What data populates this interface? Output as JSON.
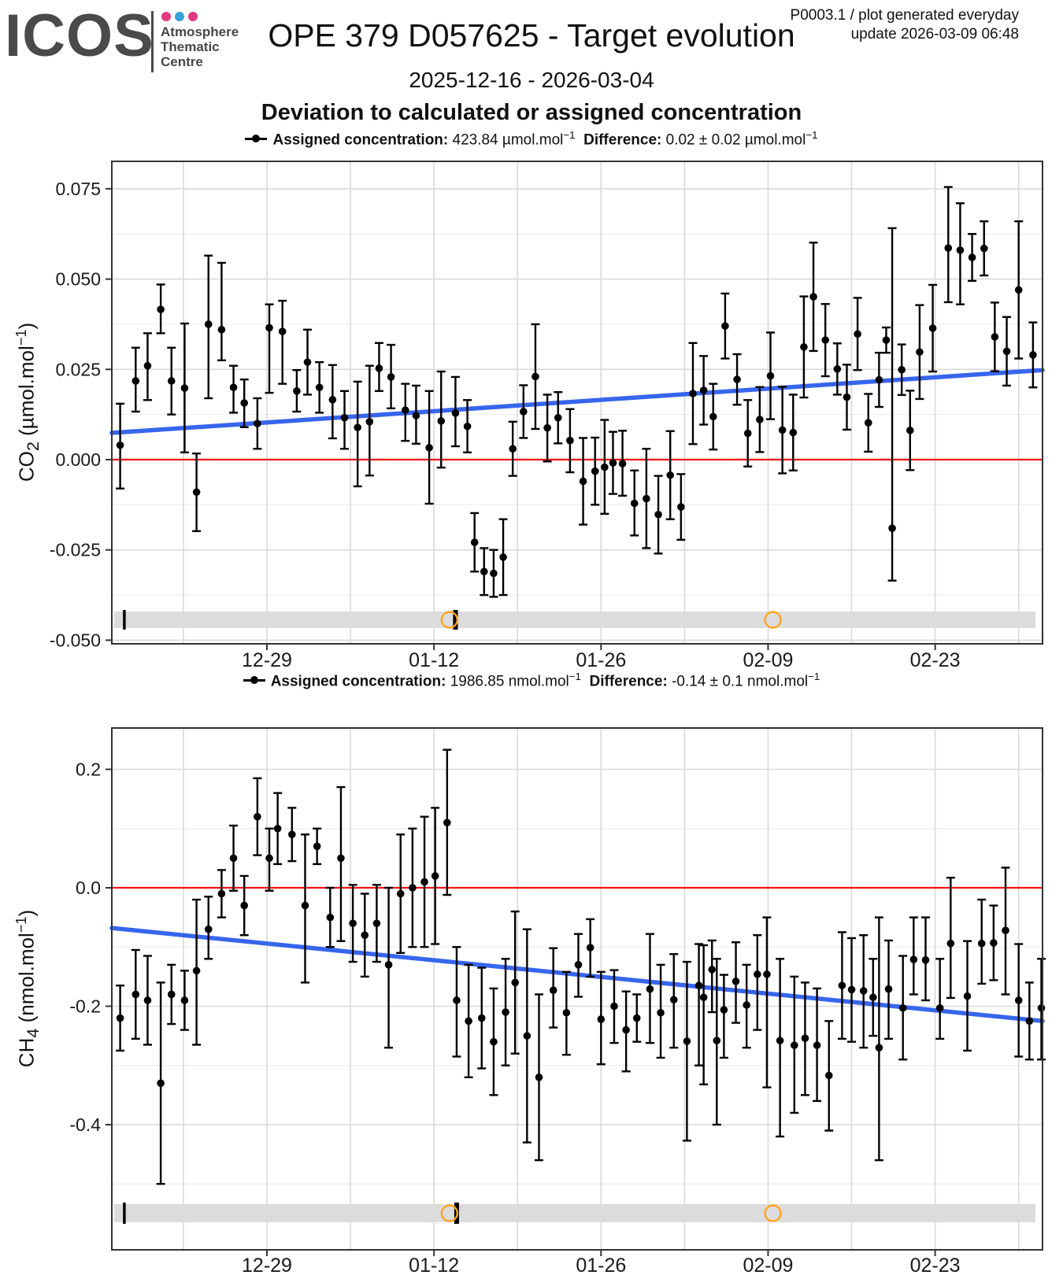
{
  "header": {
    "logo_text": "ICOS",
    "logo_dot_colors": [
      "#e23a7e",
      "#3aa0d8",
      "#e23a7e"
    ],
    "org_name": "Atmosphere\nThematic\nCentre",
    "title": "OPE 379 D057625 - Target evolution",
    "meta_line1": "P0003.1 / plot generated everyday",
    "meta_line2": "update  2026-03-09 06:48",
    "date_range": "2025-12-16 - 2026-03-04",
    "heading": "Deviation to calculated or assigned concentration"
  },
  "legends": [
    {
      "label1": "Assigned concentration:",
      "value1": "423.84 µmol.mol",
      "exp1": "−1",
      "label2": "Difference:",
      "value2": "0.02 ± 0.02 µmol.mol",
      "exp2": "−1"
    },
    {
      "label1": "Assigned concentration:",
      "value1": "1986.85 nmol.mol",
      "exp1": "−1",
      "label2": "Difference:",
      "value2": "-0.14 ± 0.1 nmol.mol",
      "exp2": "−1"
    }
  ],
  "colors": {
    "red_zero_line": "#f51313",
    "blue_trend_line": "#3765ec",
    "grid_major": "#d9d9d9",
    "grid_minor": "#eeeeee",
    "panel_border": "#333333",
    "timeline_band": "#dcdcdc",
    "orange_marker": "#ffa51e",
    "point": "#000000"
  },
  "chart_data": [
    {
      "type": "scatter",
      "series_name": "CO2 deviation to assigned concentration",
      "ylabel": {
        "gas": "CO",
        "sub": "2",
        "unit_open": "(µmol.mol",
        "exp": "−1",
        "unit_close": ")"
      },
      "x_start": "2025-12-16",
      "x_end": "2026-03-04",
      "x_days_range": [
        0,
        78
      ],
      "x_ticks": [
        {
          "day": 13,
          "label": "12-29"
        },
        {
          "day": 27,
          "label": "01-12"
        },
        {
          "day": 41,
          "label": "01-26"
        },
        {
          "day": 55,
          "label": "02-09"
        },
        {
          "day": 69,
          "label": "02-23"
        }
      ],
      "x_week_grid_days": [
        6,
        13,
        20,
        27,
        34,
        41,
        48,
        55,
        62,
        69,
        76
      ],
      "y_ticks": [
        {
          "v": 0.075,
          "label": "0.075"
        },
        {
          "v": 0.05,
          "label": "0.050"
        },
        {
          "v": 0.025,
          "label": "0.025"
        },
        {
          "v": 0,
          "label": "0.000"
        },
        {
          "v": -0.025,
          "label": "-0.025"
        },
        {
          "v": -0.05,
          "label": "-0.050"
        }
      ],
      "y_minor": [
        0.0625,
        0.0375,
        0.0125,
        -0.0125,
        -0.0375
      ],
      "ylim": [
        -0.051,
        0.0827
      ],
      "zero_line": 0,
      "trend": {
        "day0": 0,
        "v0": 0.0074,
        "day1": 78,
        "v1": 0.0248
      },
      "points": [
        [
          0.7,
          0.004,
          -0.008,
          0.0155
        ],
        [
          2,
          0.0218,
          0.0133,
          0.031
        ],
        [
          3,
          0.026,
          0.0165,
          0.035
        ],
        [
          4.1,
          0.0416,
          0.035,
          0.0485
        ],
        [
          5,
          0.0218,
          0.0125,
          0.031
        ],
        [
          6.1,
          0.0198,
          0.002,
          0.0377
        ],
        [
          7.1,
          -0.009,
          -0.0198,
          0.0017
        ],
        [
          8.1,
          0.0375,
          0.017,
          0.0565
        ],
        [
          9.2,
          0.036,
          0.0275,
          0.0545
        ],
        [
          10.2,
          0.02,
          0.013,
          0.026
        ],
        [
          11.1,
          0.0157,
          0.009,
          0.0222
        ],
        [
          12.2,
          0.01,
          0.003,
          0.017
        ],
        [
          13.2,
          0.0365,
          0.0185,
          0.043
        ],
        [
          14.3,
          0.0355,
          0.021,
          0.044
        ],
        [
          15.5,
          0.019,
          0.0133,
          0.0248
        ],
        [
          16.4,
          0.027,
          0.018,
          0.036
        ],
        [
          17.4,
          0.02,
          0.013,
          0.027
        ],
        [
          18.5,
          0.0166,
          0.0059,
          0.0262
        ],
        [
          19.5,
          0.0116,
          0.003,
          0.019
        ],
        [
          20.6,
          0.0089,
          -0.0074,
          0.0216
        ],
        [
          21.6,
          0.0105,
          -0.0044,
          0.026
        ],
        [
          22.4,
          0.0253,
          0.019,
          0.0323
        ],
        [
          23.4,
          0.0229,
          0.0142,
          0.0318
        ],
        [
          24.6,
          0.0137,
          0.0052,
          0.021
        ],
        [
          25.5,
          0.0122,
          0.0044,
          0.0205
        ],
        [
          26.6,
          0.0033,
          -0.0122,
          0.019
        ],
        [
          27.6,
          0.0107,
          -0.0022,
          0.0244
        ],
        [
          28.8,
          0.0129,
          0.0037,
          0.0229
        ],
        [
          29.8,
          0.0092,
          0.002,
          0.0165
        ],
        [
          30.4,
          -0.0229,
          -0.031,
          -0.0148
        ],
        [
          31.2,
          -0.031,
          -0.0375,
          -0.0245
        ],
        [
          32,
          -0.0315,
          -0.038,
          -0.025
        ],
        [
          32.8,
          -0.027,
          -0.0375,
          -0.0165
        ],
        [
          33.6,
          0.003,
          -0.0045,
          0.0105
        ],
        [
          34.5,
          0.0133,
          0.006,
          0.0206
        ],
        [
          35.5,
          0.023,
          0.0085,
          0.0375
        ],
        [
          36.5,
          0.0088,
          -0.0005,
          0.018
        ],
        [
          37.4,
          0.0116,
          0.0045,
          0.0187
        ],
        [
          38.4,
          0.0053,
          -0.0035,
          0.014
        ],
        [
          39.5,
          -0.006,
          -0.018,
          0.006
        ],
        [
          40.5,
          -0.0032,
          -0.0125,
          0.0061
        ],
        [
          41.3,
          -0.0021,
          -0.015,
          0.011
        ],
        [
          42,
          -0.0009,
          -0.0095,
          0.0077
        ],
        [
          42.8,
          -0.0011,
          -0.01,
          0.008
        ],
        [
          43.8,
          -0.0121,
          -0.021,
          -0.003
        ],
        [
          44.8,
          -0.0108,
          -0.0245,
          0.003
        ],
        [
          45.8,
          -0.0152,
          -0.026,
          -0.0045
        ],
        [
          46.8,
          -0.0043,
          -0.0165,
          0.0079
        ],
        [
          47.7,
          -0.0131,
          -0.0222,
          -0.004
        ],
        [
          48.7,
          0.0183,
          0.0043,
          0.0323
        ],
        [
          49.6,
          0.0192,
          0.0097,
          0.0287
        ],
        [
          50.4,
          0.0119,
          0.0028,
          0.021
        ],
        [
          51.4,
          0.037,
          0.028,
          0.046
        ],
        [
          52.4,
          0.0222,
          0.0152,
          0.0292
        ],
        [
          53.3,
          0.0073,
          -0.0019,
          0.0165
        ],
        [
          54.3,
          0.0111,
          0.0021,
          0.0201
        ],
        [
          55.2,
          0.0232,
          0.0112,
          0.0352
        ],
        [
          56.2,
          0.0082,
          -0.0038,
          0.0202
        ],
        [
          57.1,
          0.0075,
          -0.003,
          0.018
        ],
        [
          58,
          0.0312,
          0.0172,
          0.0452
        ],
        [
          58.8,
          0.0451,
          0.0301,
          0.0601
        ],
        [
          59.8,
          0.0331,
          0.0231,
          0.0431
        ],
        [
          60.8,
          0.0251,
          0.018,
          0.0322
        ],
        [
          61.6,
          0.0173,
          0.0083,
          0.0263
        ],
        [
          62.5,
          0.0348,
          0.0248,
          0.0448
        ],
        [
          63.4,
          0.0102,
          0.0022,
          0.0182
        ],
        [
          64.3,
          0.0221,
          0.0146,
          0.0296
        ],
        [
          64.9,
          0.0331,
          0.0296,
          0.0366
        ],
        [
          65.4,
          -0.019,
          -0.0335,
          0.0641
        ],
        [
          66.2,
          0.0249,
          0.0179,
          0.0319
        ],
        [
          66.9,
          0.0081,
          -0.0029,
          0.0191
        ],
        [
          67.7,
          0.0298,
          0.0168,
          0.0428
        ],
        [
          68.8,
          0.0364,
          0.0244,
          0.0484
        ],
        [
          70.1,
          0.0586,
          0.0436,
          0.0755
        ],
        [
          71.1,
          0.058,
          0.043,
          0.071
        ],
        [
          72.1,
          0.056,
          0.0495,
          0.0625
        ],
        [
          73.1,
          0.0585,
          0.051,
          0.066
        ],
        [
          74,
          0.034,
          0.0245,
          0.0435
        ],
        [
          75,
          0.03,
          0.0205,
          0.0395
        ],
        [
          76,
          0.047,
          0.028,
          0.066
        ],
        [
          77.2,
          0.029,
          0.02,
          0.038
        ]
      ],
      "timeline": {
        "ticks": [
          {
            "day": 1.05,
            "weight": "thin"
          },
          {
            "day": 28.8,
            "weight": "thick"
          }
        ],
        "circles": [
          {
            "day": 28.3
          },
          {
            "day": 55.4
          }
        ]
      }
    },
    {
      "type": "scatter",
      "series_name": "CH4 deviation to assigned concentration",
      "ylabel": {
        "gas": "CH",
        "sub": "4",
        "unit_open": "(nmol.mol",
        "exp": "−1",
        "unit_close": ")"
      },
      "x_start": "2025-12-16",
      "x_end": "2026-03-04",
      "x_days_range": [
        0,
        78
      ],
      "x_ticks": [
        {
          "day": 13,
          "label": "12-29"
        },
        {
          "day": 27,
          "label": "01-12"
        },
        {
          "day": 41,
          "label": "01-26"
        },
        {
          "day": 55,
          "label": "02-09"
        },
        {
          "day": 69,
          "label": "02-23"
        }
      ],
      "x_week_grid_days": [
        6,
        13,
        20,
        27,
        34,
        41,
        48,
        55,
        62,
        69,
        76
      ],
      "y_ticks": [
        {
          "v": 0.2,
          "label": "0.2"
        },
        {
          "v": 0,
          "label": "0.0"
        },
        {
          "v": -0.2,
          "label": "-0.2"
        },
        {
          "v": -0.4,
          "label": "-0.4"
        }
      ],
      "y_minor": [
        0.1,
        -0.1,
        -0.3,
        -0.5
      ],
      "ylim": [
        -0.611,
        0.27
      ],
      "zero_line": 0,
      "trend": {
        "day0": 0,
        "v0": -0.068,
        "day1": 78,
        "v1": -0.225
      },
      "points": [
        [
          0.7,
          -0.22,
          -0.275,
          -0.165
        ],
        [
          2,
          -0.18,
          -0.255,
          -0.105
        ],
        [
          3,
          -0.19,
          -0.265,
          -0.115
        ],
        [
          4.1,
          -0.33,
          -0.5,
          -0.16
        ],
        [
          5,
          -0.18,
          -0.23,
          -0.13
        ],
        [
          6.1,
          -0.19,
          -0.24,
          -0.14
        ],
        [
          7.1,
          -0.14,
          -0.265,
          -0.02
        ],
        [
          8.1,
          -0.07,
          -0.12,
          -0.015
        ],
        [
          9.2,
          -0.01,
          -0.05,
          0.03
        ],
        [
          10.2,
          0.05,
          -0.005,
          0.105
        ],
        [
          11.1,
          -0.03,
          -0.08,
          0.02
        ],
        [
          12.2,
          0.12,
          0.055,
          0.185
        ],
        [
          13.2,
          0.05,
          -0.005,
          0.1
        ],
        [
          13.9,
          0.1,
          0.04,
          0.16
        ],
        [
          15.1,
          0.09,
          0.045,
          0.135
        ],
        [
          16.2,
          -0.03,
          -0.16,
          0.09
        ],
        [
          17.2,
          0.07,
          0.04,
          0.1
        ],
        [
          18.3,
          -0.05,
          -0.1,
          0
        ],
        [
          19.2,
          0.05,
          -0.09,
          0.17
        ],
        [
          20.2,
          -0.06,
          -0.125,
          0.005
        ],
        [
          21.2,
          -0.08,
          -0.15,
          -0.01
        ],
        [
          22.2,
          -0.06,
          -0.125,
          0.005
        ],
        [
          23.2,
          -0.13,
          -0.27,
          0
        ],
        [
          24.2,
          -0.01,
          -0.11,
          0.09
        ],
        [
          25.2,
          0,
          -0.1,
          0.1
        ],
        [
          26.2,
          0.01,
          -0.1,
          0.12
        ],
        [
          27.1,
          0.02,
          -0.095,
          0.135
        ],
        [
          28.1,
          0.11,
          -0.012,
          0.233
        ],
        [
          28.9,
          -0.19,
          -0.285,
          -0.1
        ],
        [
          29.9,
          -0.225,
          -0.32,
          -0.13
        ],
        [
          31,
          -0.22,
          -0.305,
          -0.135
        ],
        [
          32,
          -0.26,
          -0.35,
          -0.17
        ],
        [
          33,
          -0.21,
          -0.3,
          -0.12
        ],
        [
          33.8,
          -0.16,
          -0.28,
          -0.04
        ],
        [
          34.8,
          -0.25,
          -0.43,
          -0.07
        ],
        [
          35.8,
          -0.32,
          -0.46,
          -0.18
        ],
        [
          37,
          -0.173,
          -0.236,
          -0.102
        ],
        [
          38.1,
          -0.211,
          -0.282,
          -0.142
        ],
        [
          39.1,
          -0.13,
          -0.184,
          -0.078
        ],
        [
          40.1,
          -0.101,
          -0.15,
          -0.053
        ],
        [
          41,
          -0.222,
          -0.298,
          -0.142
        ],
        [
          42.1,
          -0.2,
          -0.262,
          -0.139
        ],
        [
          43.1,
          -0.24,
          -0.31,
          -0.175
        ],
        [
          44,
          -0.22,
          -0.26,
          -0.18
        ],
        [
          45.1,
          -0.171,
          -0.262,
          -0.078
        ],
        [
          46,
          -0.211,
          -0.287,
          -0.13
        ],
        [
          47.1,
          -0.189,
          -0.27,
          -0.112
        ],
        [
          48.2,
          -0.259,
          -0.427,
          -0.125
        ],
        [
          49.2,
          -0.165,
          -0.3,
          -0.095
        ],
        [
          49.6,
          -0.185,
          -0.332,
          -0.097
        ],
        [
          50.3,
          -0.138,
          -0.21,
          -0.089
        ],
        [
          50.7,
          -0.258,
          -0.4,
          -0.12
        ],
        [
          51.3,
          -0.206,
          -0.287,
          -0.147
        ],
        [
          52.3,
          -0.158,
          -0.228,
          -0.092
        ],
        [
          53.2,
          -0.198,
          -0.27,
          -0.13
        ],
        [
          54.1,
          -0.146,
          -0.24,
          -0.08
        ],
        [
          54.9,
          -0.146,
          -0.337,
          -0.05
        ],
        [
          56,
          -0.258,
          -0.42,
          -0.12
        ],
        [
          57.2,
          -0.266,
          -0.38,
          -0.15
        ],
        [
          58.1,
          -0.254,
          -0.35,
          -0.16
        ],
        [
          59.1,
          -0.266,
          -0.36,
          -0.17
        ],
        [
          60.1,
          -0.317,
          -0.41,
          -0.225
        ],
        [
          61.2,
          -0.165,
          -0.255,
          -0.075
        ],
        [
          62,
          -0.172,
          -0.26,
          -0.085
        ],
        [
          63,
          -0.174,
          -0.27,
          -0.08
        ],
        [
          63.8,
          -0.185,
          -0.25,
          -0.12
        ],
        [
          64.3,
          -0.27,
          -0.46,
          -0.05
        ],
        [
          65.1,
          -0.171,
          -0.255,
          -0.089
        ],
        [
          66.3,
          -0.203,
          -0.29,
          -0.115
        ],
        [
          67.2,
          -0.121,
          -0.18,
          -0.05
        ],
        [
          68.2,
          -0.122,
          -0.19,
          -0.05
        ],
        [
          69.4,
          -0.203,
          -0.255,
          -0.12
        ],
        [
          70.3,
          -0.094,
          -0.186,
          0.017
        ],
        [
          71.7,
          -0.183,
          -0.275,
          -0.09
        ],
        [
          72.9,
          -0.094,
          -0.162,
          -0.02
        ],
        [
          73.9,
          -0.093,
          -0.156,
          -0.03
        ],
        [
          74.9,
          -0.072,
          -0.18,
          0.034
        ],
        [
          76,
          -0.19,
          -0.285,
          -0.095
        ],
        [
          76.9,
          -0.225,
          -0.29,
          -0.16
        ],
        [
          77.9,
          -0.203,
          -0.29,
          -0.12
        ]
      ],
      "timeline": {
        "ticks": [
          {
            "day": 1.05,
            "weight": "thin"
          },
          {
            "day": 28.9,
            "weight": "thick"
          }
        ],
        "circles": [
          {
            "day": 28.3
          },
          {
            "day": 55.4
          }
        ]
      }
    }
  ]
}
